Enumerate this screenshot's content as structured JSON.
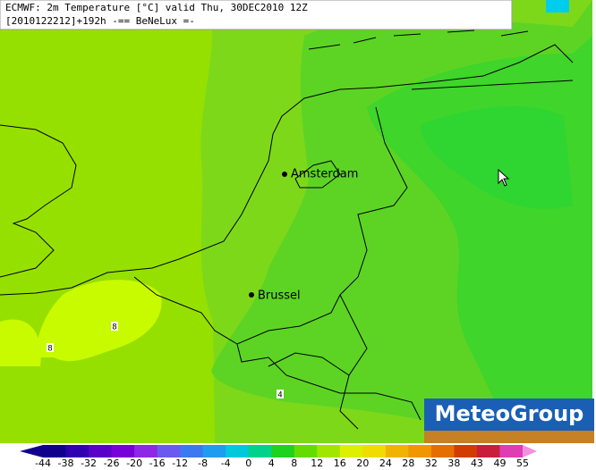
{
  "header": {
    "line1": "ECMWF: 2m Temperature [°C] valid Thu, 30DEC2010 12Z",
    "line2": "[2010122212]+192h -== BeNeLux =-"
  },
  "cities": [
    "Amsterdam",
    "Brussel"
  ],
  "contour_labels": [
    "8",
    "8",
    "4"
  ],
  "logo": "MeteoGroup",
  "colorbar": {
    "ticks": [
      -44,
      -38,
      -32,
      -26,
      -20,
      -16,
      -12,
      -8,
      -4,
      0,
      4,
      8,
      12,
      16,
      20,
      24,
      28,
      32,
      38,
      43,
      49,
      55
    ]
  }
}
